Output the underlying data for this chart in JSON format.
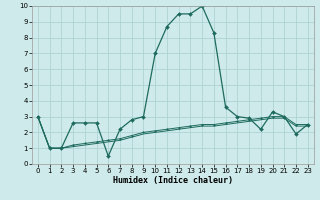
{
  "title": "",
  "xlabel": "Humidex (Indice chaleur)",
  "ylabel": "",
  "xlim": [
    -0.5,
    23.5
  ],
  "ylim": [
    0,
    10
  ],
  "xticks": [
    0,
    1,
    2,
    3,
    4,
    5,
    6,
    7,
    8,
    9,
    10,
    11,
    12,
    13,
    14,
    15,
    16,
    17,
    18,
    19,
    20,
    21,
    22,
    23
  ],
  "yticks": [
    0,
    1,
    2,
    3,
    4,
    5,
    6,
    7,
    8,
    9,
    10
  ],
  "bg_color": "#ceeaea",
  "line_color": "#1e6b5e",
  "grid_color": "#aed4d4",
  "line1_x": [
    0,
    1,
    2,
    3,
    4,
    5,
    6,
    7,
    8,
    9,
    10,
    11,
    12,
    13,
    14,
    15,
    16,
    17,
    18,
    19,
    20,
    21,
    22,
    23
  ],
  "line1_y": [
    3.0,
    1.0,
    1.0,
    2.6,
    2.6,
    2.6,
    0.5,
    2.2,
    2.8,
    3.0,
    7.0,
    8.7,
    9.5,
    9.5,
    10.0,
    8.3,
    3.6,
    3.0,
    2.9,
    2.2,
    3.3,
    3.0,
    1.9,
    2.5
  ],
  "line2_x": [
    0,
    1,
    2,
    3,
    4,
    5,
    6,
    7,
    8,
    9,
    10,
    11,
    12,
    13,
    14,
    15,
    16,
    17,
    18,
    19,
    20,
    21,
    22,
    23
  ],
  "line2_y": [
    3.0,
    1.0,
    1.0,
    1.2,
    1.3,
    1.4,
    1.5,
    1.6,
    1.8,
    2.0,
    2.1,
    2.2,
    2.3,
    2.4,
    2.5,
    2.5,
    2.6,
    2.7,
    2.8,
    2.9,
    3.0,
    3.0,
    2.5,
    2.5
  ],
  "line3_x": [
    0,
    1,
    2,
    3,
    4,
    5,
    6,
    7,
    8,
    9,
    10,
    11,
    12,
    13,
    14,
    15,
    16,
    17,
    18,
    19,
    20,
    21,
    22,
    23
  ],
  "line3_y": [
    3.0,
    1.0,
    1.0,
    1.1,
    1.2,
    1.3,
    1.4,
    1.5,
    1.7,
    1.9,
    2.0,
    2.1,
    2.2,
    2.3,
    2.4,
    2.4,
    2.5,
    2.6,
    2.7,
    2.8,
    2.9,
    2.9,
    2.4,
    2.4
  ]
}
